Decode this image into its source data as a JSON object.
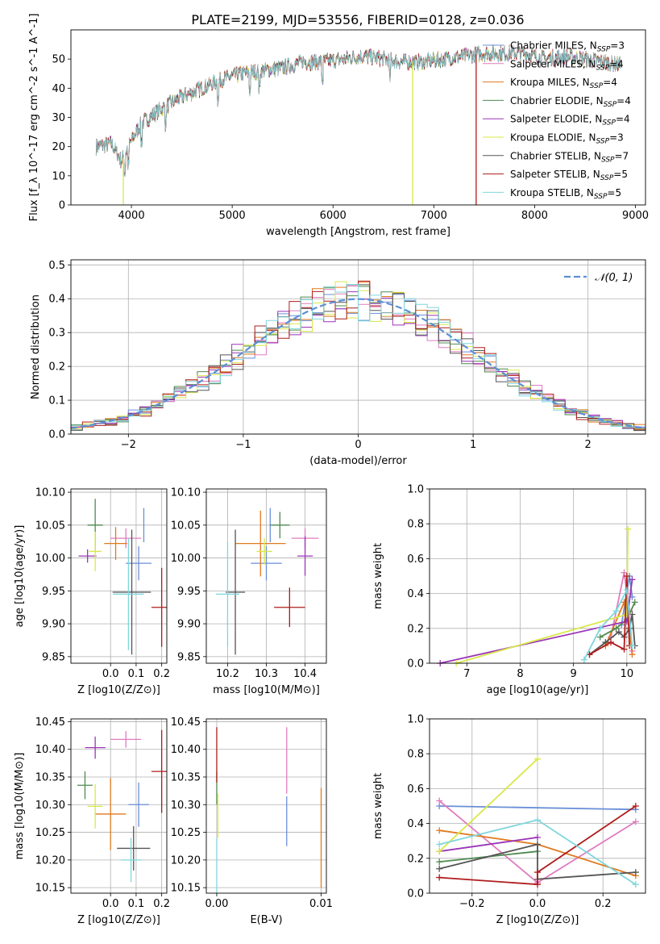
{
  "figure_title": "PLATE=2199, MJD=53556, FIBERID=0128, z=0.036",
  "colors": {
    "chabrier_miles": "#6a8fd8",
    "salpeter_miles": "#e07cc0",
    "kroupa_miles": "#e07a1f",
    "chabrier_elodie": "#4f8a4f",
    "salpeter_elodie": "#9b34b8",
    "kroupa_elodie": "#d8e84a",
    "chabrier_stelib": "#555555",
    "salpeter_stelib": "#b01c1c",
    "kroupa_stelib": "#7fd6dc",
    "gaussian": "#5b8fd6",
    "grid": "#b0b0b0"
  },
  "chart_data": [
    {
      "id": "spectrum",
      "type": "line",
      "xlabel": "wavelength [Angstrom, rest frame]",
      "ylabel": "Flux [f_λ 10^-17 erg cm^-2 s^-1 A^-1]",
      "xlim": [
        3400,
        9100
      ],
      "ylim": [
        0,
        60
      ],
      "xticks": [
        4000,
        5000,
        6000,
        7000,
        8000,
        9000
      ],
      "yticks": [
        0,
        10,
        20,
        30,
        40,
        50
      ],
      "grid": false,
      "legend_position": "top-right",
      "x_range": [
        3650,
        8850
      ],
      "continuum": [
        [
          3650,
          20
        ],
        [
          3800,
          21
        ],
        [
          3900,
          15
        ],
        [
          4000,
          22
        ],
        [
          4100,
          28
        ],
        [
          4300,
          33
        ],
        [
          4500,
          37
        ],
        [
          4700,
          40
        ],
        [
          4900,
          43
        ],
        [
          5100,
          45
        ],
        [
          5300,
          46
        ],
        [
          5500,
          47
        ],
        [
          5700,
          49
        ],
        [
          5900,
          49
        ],
        [
          6100,
          50
        ],
        [
          6300,
          51
        ],
        [
          6500,
          50
        ],
        [
          6700,
          49
        ],
        [
          6900,
          49
        ],
        [
          7100,
          50
        ],
        [
          7300,
          51
        ],
        [
          7500,
          52
        ],
        [
          7700,
          52
        ],
        [
          7900,
          52
        ],
        [
          8100,
          50
        ],
        [
          8300,
          51
        ],
        [
          8500,
          50
        ],
        [
          8700,
          49
        ],
        [
          8850,
          48
        ]
      ],
      "legend": [
        {
          "label": "Chabrier MILES, N_SSP=3",
          "text": "Chabrier MILES, N",
          "sub": "SSP",
          "tail": "=3",
          "color_key": "chabrier_miles"
        },
        {
          "label": "Salpeter MILES, N_SSP=4",
          "text": "Salpeter MILES, N",
          "sub": "SSP",
          "tail": "=4",
          "color_key": "salpeter_miles"
        },
        {
          "label": "Kroupa MILES, N_SSP=4",
          "text": "Kroupa MILES, N",
          "sub": "SSP",
          "tail": "=4",
          "color_key": "kroupa_miles"
        },
        {
          "label": "Chabrier ELODIE, N_SSP=4",
          "text": "Chabrier ELODIE, N",
          "sub": "SSP",
          "tail": "=4",
          "color_key": "chabrier_elodie"
        },
        {
          "label": "Salpeter ELODIE, N_SSP=4",
          "text": "Salpeter ELODIE, N",
          "sub": "SSP",
          "tail": "=4",
          "color_key": "salpeter_elodie"
        },
        {
          "label": "Kroupa ELODIE, N_SSP=3",
          "text": "Kroupa ELODIE, N",
          "sub": "SSP",
          "tail": "=3",
          "color_key": "kroupa_elodie"
        },
        {
          "label": "Chabrier STELIB, N_SSP=7",
          "text": "Chabrier STELIB, N",
          "sub": "SSP",
          "tail": "=7",
          "color_key": "chabrier_stelib"
        },
        {
          "label": "Salpeter STELIB, N_SSP=5",
          "text": "Salpeter STELIB, N",
          "sub": "SSP",
          "tail": "=5",
          "color_key": "salpeter_stelib"
        },
        {
          "label": "Kroupa STELIB, N_SSP=5",
          "text": "Kroupa STELIB, N",
          "sub": "SSP",
          "tail": "=5",
          "color_key": "kroupa_stelib"
        }
      ],
      "drops": [
        {
          "x": 3920,
          "color_key": "kroupa_elodie"
        },
        {
          "x": 6790,
          "color_key": "kroupa_elodie"
        },
        {
          "x": 7420,
          "color_key": "salpeter_stelib"
        }
      ]
    },
    {
      "id": "residuals",
      "type": "histogram",
      "xlabel": "(data-model)/error",
      "ylabel": "Normed distribution",
      "xlim": [
        -2.5,
        2.5
      ],
      "ylim": [
        0,
        0.515
      ],
      "xticks": [
        -2,
        -1,
        0,
        1,
        2
      ],
      "yticks": [
        0.0,
        0.1,
        0.2,
        0.3,
        0.4,
        0.5
      ],
      "grid": true,
      "legend_position": "top-right",
      "legend": [
        {
          "label": "𝒩(0, 1)",
          "color_key": "gaussian",
          "style": "dashed"
        }
      ],
      "bins": 50
    },
    {
      "id": "age_vs_Z",
      "type": "errorbar",
      "xlabel": "Z [log10(Z/Z⊙)]",
      "ylabel": "age [log10(age/yr)]",
      "xlim": [
        -0.155,
        0.22
      ],
      "ylim": [
        9.84,
        10.105
      ],
      "xticks": [
        0.0,
        0.1,
        0.2
      ],
      "yticks": [
        9.85,
        9.9,
        9.95,
        10.0,
        10.05,
        10.1
      ],
      "grid": true,
      "points": [
        {
          "color_key": "chabrier_miles",
          "x": 0.11,
          "xerr": 0.05,
          "y": 9.992,
          "yerr": 0.026
        },
        {
          "color_key": "chabrier_miles",
          "x": 0.13,
          "xerr": 0.0,
          "y": 10.05,
          "yerr": 0.026
        },
        {
          "color_key": "salpeter_miles",
          "x": 0.06,
          "xerr": 0.06,
          "y": 10.03,
          "yerr": 0.015
        },
        {
          "color_key": "kroupa_miles",
          "x": 0.02,
          "xerr": 0.045,
          "y": 10.022,
          "yerr": 0.025
        },
        {
          "color_key": "chabrier_elodie",
          "x": -0.06,
          "xerr": 0.03,
          "y": 10.05,
          "yerr": 0.04
        },
        {
          "color_key": "salpeter_elodie",
          "x": -0.09,
          "xerr": 0.035,
          "y": 10.003,
          "yerr": 0.01
        },
        {
          "color_key": "kroupa_elodie",
          "x": -0.06,
          "xerr": 0.025,
          "y": 10.01,
          "yerr": 0.03
        },
        {
          "color_key": "chabrier_stelib",
          "x": 0.083,
          "xerr": 0.075,
          "y": 9.948,
          "yerr": 0.095
        },
        {
          "color_key": "salpeter_stelib",
          "x": 0.2,
          "xerr": 0.04,
          "y": 9.925,
          "yerr": 0.06
        },
        {
          "color_key": "kroupa_stelib",
          "x": 0.07,
          "xerr": 0.06,
          "y": 9.945,
          "yerr": 0.085
        }
      ]
    },
    {
      "id": "age_vs_mass",
      "type": "errorbar",
      "xlabel": "mass [log10(M/M⊙)]",
      "ylabel": "",
      "xlim": [
        10.145,
        10.455
      ],
      "ylim": [
        9.84,
        10.105
      ],
      "xticks": [
        10.2,
        10.3,
        10.4
      ],
      "yticks": [
        9.85,
        9.9,
        9.95,
        10.0,
        10.05,
        10.1
      ],
      "grid": true,
      "points": [
        {
          "color_key": "chabrier_miles",
          "x": 10.3,
          "xerr": 0.04,
          "y": 9.992,
          "yerr": 0.026
        },
        {
          "color_key": "chabrier_miles",
          "x": 10.31,
          "xerr": 0.0,
          "y": 10.05,
          "yerr": 0.026
        },
        {
          "color_key": "salpeter_miles",
          "x": 10.4,
          "xerr": 0.035,
          "y": 10.03,
          "yerr": 0.015
        },
        {
          "color_key": "kroupa_miles",
          "x": 10.285,
          "xerr": 0.065,
          "y": 10.022,
          "yerr": 0.05
        },
        {
          "color_key": "chabrier_elodie",
          "x": 10.335,
          "xerr": 0.025,
          "y": 10.05,
          "yerr": 0.02
        },
        {
          "color_key": "salpeter_elodie",
          "x": 10.4,
          "xerr": 0.02,
          "y": 10.003,
          "yerr": 0.03
        },
        {
          "color_key": "kroupa_elodie",
          "x": 10.295,
          "xerr": 0.02,
          "y": 10.01,
          "yerr": 0.02
        },
        {
          "color_key": "chabrier_stelib",
          "x": 10.22,
          "xerr": 0.025,
          "y": 9.948,
          "yerr": 0.095
        },
        {
          "color_key": "salpeter_stelib",
          "x": 10.36,
          "xerr": 0.04,
          "y": 9.925,
          "yerr": 0.03
        },
        {
          "color_key": "kroupa_stelib",
          "x": 10.2,
          "xerr": 0.03,
          "y": 9.945,
          "yerr": 0.08
        }
      ]
    },
    {
      "id": "weight_vs_age",
      "type": "line",
      "xlabel": "age [log10(age/yr)]",
      "ylabel": "mass weight",
      "xlim": [
        6.3,
        10.35
      ],
      "ylim": [
        0,
        1.0
      ],
      "xticks": [
        7,
        8,
        9,
        10
      ],
      "yticks": [
        0.0,
        0.2,
        0.4,
        0.6,
        0.8,
        1.0
      ],
      "grid": true,
      "series": [
        {
          "color_key": "chabrier_miles",
          "x": [
            9.9,
            10.05,
            10.1
          ],
          "y": [
            0.22,
            0.5,
            0.38
          ]
        },
        {
          "color_key": "salpeter_miles",
          "x": [
            9.7,
            9.95,
            10.05,
            10.1
          ],
          "y": [
            0.15,
            0.52,
            0.3,
            0.07
          ]
        },
        {
          "color_key": "kroupa_miles",
          "x": [
            9.6,
            9.95,
            10.05,
            10.1
          ],
          "y": [
            0.1,
            0.35,
            0.2,
            0.05
          ]
        },
        {
          "color_key": "chabrier_elodie",
          "x": [
            9.5,
            9.8,
            10.0,
            10.15
          ],
          "y": [
            0.15,
            0.2,
            0.25,
            0.35
          ]
        },
        {
          "color_key": "salpeter_elodie",
          "x": [
            6.5,
            10.0,
            10.1
          ],
          "y": [
            0.0,
            0.24,
            0.48
          ]
        },
        {
          "color_key": "kroupa_elodie",
          "x": [
            6.8,
            10.0,
            10.02
          ],
          "y": [
            0.0,
            0.28,
            0.77
          ]
        },
        {
          "color_key": "chabrier_stelib",
          "x": [
            9.3,
            9.6,
            9.85,
            9.95,
            10.05,
            10.1,
            10.15
          ],
          "y": [
            0.05,
            0.12,
            0.18,
            0.15,
            0.2,
            0.28,
            0.1
          ]
        },
        {
          "color_key": "salpeter_stelib",
          "x": [
            9.3,
            9.7,
            9.95,
            10.0,
            10.05
          ],
          "y": [
            0.05,
            0.12,
            0.08,
            0.5,
            0.1
          ]
        },
        {
          "color_key": "kroupa_stelib",
          "x": [
            9.2,
            9.5,
            9.8,
            10.0,
            10.1
          ],
          "y": [
            0.02,
            0.2,
            0.3,
            0.42,
            0.1
          ]
        }
      ]
    },
    {
      "id": "mass_vs_Z",
      "type": "errorbar",
      "xlabel": "Z [log10(Z/Z⊙)]",
      "ylabel": "mass [log10(M/M⊙)]",
      "xlim": [
        -0.155,
        0.22
      ],
      "ylim": [
        10.14,
        10.455
      ],
      "xticks": [
        0.0,
        0.1,
        0.2
      ],
      "yticks": [
        10.15,
        10.2,
        10.25,
        10.3,
        10.35,
        10.4,
        10.45
      ],
      "grid": true,
      "points": [
        {
          "color_key": "chabrier_miles",
          "x": 0.11,
          "xerr": 0.04,
          "y": 10.3,
          "yerr": 0.04
        },
        {
          "color_key": "salpeter_miles",
          "x": 0.06,
          "xerr": 0.06,
          "y": 10.418,
          "yerr": 0.015
        },
        {
          "color_key": "kroupa_miles",
          "x": 0.0,
          "xerr": 0.06,
          "y": 10.283,
          "yerr": 0.065
        },
        {
          "color_key": "chabrier_elodie",
          "x": -0.1,
          "xerr": 0.03,
          "y": 10.335,
          "yerr": 0.025
        },
        {
          "color_key": "salpeter_elodie",
          "x": -0.06,
          "xerr": 0.04,
          "y": 10.403,
          "yerr": 0.02
        },
        {
          "color_key": "kroupa_elodie",
          "x": -0.06,
          "xerr": 0.03,
          "y": 10.297,
          "yerr": 0.04
        },
        {
          "color_key": "chabrier_stelib",
          "x": 0.09,
          "xerr": 0.065,
          "y": 10.221,
          "yerr": 0.04
        },
        {
          "color_key": "salpeter_stelib",
          "x": 0.2,
          "xerr": 0.04,
          "y": 10.36,
          "yerr": 0.075
        },
        {
          "color_key": "kroupa_stelib",
          "x": 0.08,
          "xerr": 0.04,
          "y": 10.2,
          "yerr": 0.04
        }
      ]
    },
    {
      "id": "mass_vs_ebv",
      "type": "errorbar",
      "xlabel": "E(B-V)",
      "ylabel": "",
      "xlim": [
        -0.001,
        0.0105
      ],
      "ylim": [
        10.14,
        10.455
      ],
      "xticks": [
        0.0,
        0.01
      ],
      "yticks": [
        10.15,
        10.2,
        10.25,
        10.3,
        10.35,
        10.4,
        10.45
      ],
      "grid": true,
      "points": [
        {
          "color_key": "chabrier_miles",
          "x": 0.0067,
          "xerr": 0.0,
          "y": 10.27,
          "yerr": 0.045
        },
        {
          "color_key": "salpeter_miles",
          "x": 0.0067,
          "xerr": 0.0,
          "y": 10.38,
          "yerr": 0.06
        },
        {
          "color_key": "kroupa_miles",
          "x": 0.01,
          "xerr": 0.0,
          "y": 10.24,
          "yerr": 0.09
        },
        {
          "color_key": "chabrier_elodie",
          "x": 0.0,
          "xerr": 0.0,
          "y": 10.33,
          "yerr": 0.03
        },
        {
          "color_key": "kroupa_elodie",
          "x": 0.0001,
          "xerr": 0.0,
          "y": 10.28,
          "yerr": 0.04
        },
        {
          "color_key": "salpeter_stelib",
          "x": 0.0,
          "xerr": 0.0,
          "y": 10.39,
          "yerr": 0.05
        },
        {
          "color_key": "kroupa_stelib",
          "x": 0.0,
          "xerr": 0.0,
          "y": 10.19,
          "yerr": 0.05
        }
      ]
    },
    {
      "id": "weight_vs_Z",
      "type": "line",
      "xlabel": "Z [log10(Z/Z⊙)]",
      "ylabel": "mass weight",
      "xlim": [
        -0.33,
        0.33
      ],
      "ylim": [
        0,
        1.0
      ],
      "xticks": [
        -0.2,
        0.0,
        0.2
      ],
      "yticks": [
        0.0,
        0.2,
        0.4,
        0.6,
        0.8,
        1.0
      ],
      "grid": true,
      "series": [
        {
          "color_key": "chabrier_miles",
          "x": [
            -0.3,
            0.3
          ],
          "y": [
            0.5,
            0.48
          ]
        },
        {
          "color_key": "salpeter_miles",
          "x": [
            -0.3,
            0.0,
            0.3
          ],
          "y": [
            0.53,
            0.06,
            0.41
          ]
        },
        {
          "color_key": "kroupa_miles",
          "x": [
            -0.3,
            0.0,
            0.3
          ],
          "y": [
            0.36,
            0.28,
            0.1
          ]
        },
        {
          "color_key": "chabrier_elodie",
          "x": [
            -0.3,
            0.0
          ],
          "y": [
            0.18,
            0.24
          ]
        },
        {
          "color_key": "salpeter_elodie",
          "x": [
            -0.3,
            0.0
          ],
          "y": [
            0.24,
            0.32
          ]
        },
        {
          "color_key": "kroupa_elodie",
          "x": [
            -0.3,
            0.0
          ],
          "y": [
            0.24,
            0.77
          ]
        },
        {
          "color_key": "chabrier_stelib",
          "x": [
            -0.3,
            0.0,
            0.0,
            0.3
          ],
          "y": [
            0.14,
            0.28,
            0.08,
            0.12
          ]
        },
        {
          "color_key": "salpeter_stelib",
          "x": [
            -0.3,
            0.0,
            0.0,
            0.3
          ],
          "y": [
            0.09,
            0.05,
            0.12,
            0.5
          ]
        },
        {
          "color_key": "kroupa_stelib",
          "x": [
            -0.3,
            0.0,
            0.3
          ],
          "y": [
            0.28,
            0.42,
            0.05
          ]
        }
      ]
    }
  ]
}
